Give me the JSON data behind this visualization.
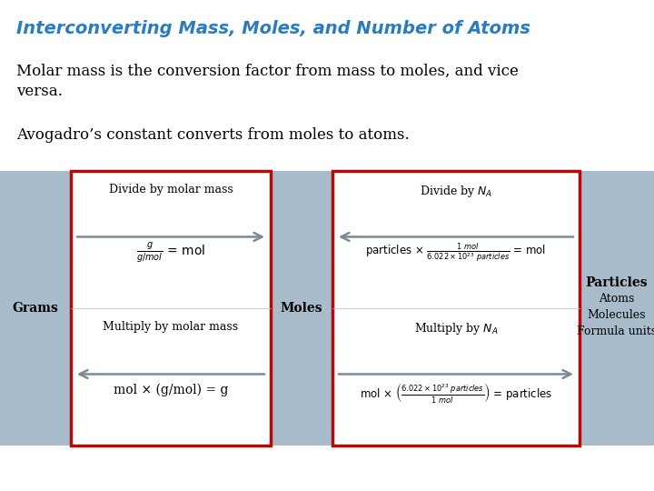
{
  "title": "Interconverting Mass, Moles, and Number of Atoms",
  "title_color": "#2B7BBD",
  "bg_color": "#FFFFFF",
  "text1_line1": "Molar mass is the conversion factor from mass to moles, and vice",
  "text1_line2": "versa.",
  "text2": "Avogadro’s constant converts from moles to atoms.",
  "grams_label": "Grams",
  "moles_label": "Moles",
  "particles_line1": "Particles",
  "particles_line2": "Atoms",
  "particles_line3": "Molecules",
  "particles_line4": "Formula units",
  "left_top_label": "Divide by molar mass",
  "left_top_formula": "$\\frac{g}{g/mol}$ = mol",
  "left_bot_label": "Multiply by molar mass",
  "left_bot_formula": "mol × (g/mol) = g",
  "right_top_label": "Divide by $N_A$",
  "right_top_formula": "particles × $\\frac{1\\ mol}{6.022 \\times 10^{23}\\ particles}$ = mol",
  "right_bot_label": "Multiply by $N_A$",
  "right_bot_formula": "mol × $\\left(\\frac{6.022 \\times 10^{23}\\ particles}{1\\ mol}\\right)$ = particles",
  "box_bg": "#FFFFFF",
  "red_edge": "#CC0000",
  "gray_color": "#A8BCCB",
  "arrow_color": "#7A8B96",
  "text_color": "#000000",
  "fs_title": 14,
  "fs_body": 12,
  "fs_label": 9,
  "fs_formula": 9,
  "fs_side": 10
}
